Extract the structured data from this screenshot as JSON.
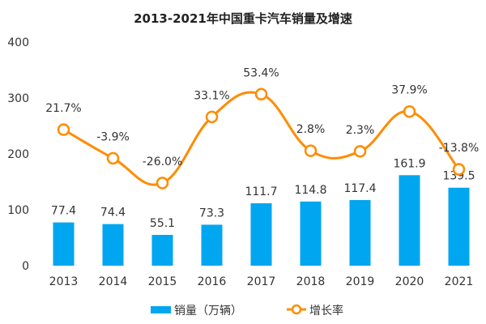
{
  "chart_data": {
    "type": "bar+line",
    "title": "2013-2021年中国重卡汽车销量及增速",
    "categories": [
      "2013",
      "2014",
      "2015",
      "2016",
      "2017",
      "2018",
      "2019",
      "2020",
      "2021"
    ],
    "ylim": [
      0,
      400
    ],
    "yticks": [
      0,
      100,
      200,
      300,
      400
    ],
    "grid": false,
    "legend_position": "bottom",
    "series": [
      {
        "name": "销量（万辆）",
        "type": "bar",
        "axis": "left",
        "color": "#00a6f0",
        "values": [
          77.4,
          74.4,
          55.1,
          73.3,
          111.7,
          114.8,
          117.4,
          161.9,
          139.5
        ],
        "labels": [
          "77.4",
          "74.4",
          "55.1",
          "73.3",
          "111.7",
          "114.8",
          "117.4",
          "161.9",
          "139.5"
        ]
      },
      {
        "name": "增长率",
        "type": "line",
        "axis": "secondary-hidden",
        "color": "#ff8c00",
        "values": [
          21.7,
          -3.9,
          -26.0,
          33.1,
          53.4,
          2.8,
          2.3,
          37.9,
          -13.8
        ],
        "labels": [
          "21.7%",
          "-3.9%",
          "-26.0%",
          "33.1%",
          "53.4%",
          "2.8%",
          "2.3%",
          "37.9%",
          "-13.8%"
        ],
        "secondary_ylim": [
          -100,
          100
        ],
        "smooth": true
      }
    ]
  }
}
